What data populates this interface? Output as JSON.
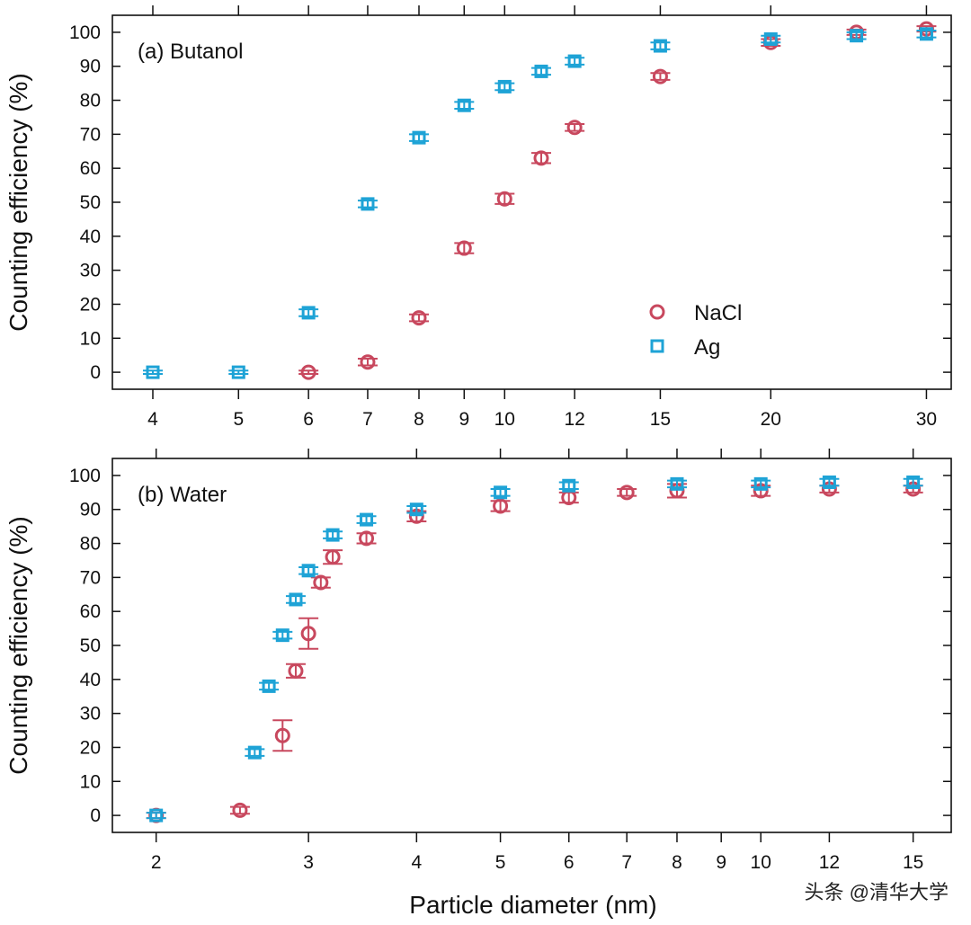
{
  "watermark": "头条 @清华大学",
  "shared_xlabel": "Particle diameter (nm)",
  "colors": {
    "NaCl": "#c8485e",
    "Ag": "#1ea3d6"
  },
  "chart_data": [
    {
      "type": "scatter",
      "panel_label": "(a) Butanol",
      "ylabel": "Counting efficiency (%)",
      "x_scale": "log",
      "xlim": [
        3.6,
        32
      ],
      "ylim": [
        -5,
        105
      ],
      "x_ticks": [
        4,
        5,
        6,
        7,
        8,
        9,
        10,
        12,
        15,
        20,
        30
      ],
      "y_ticks": [
        0,
        10,
        20,
        30,
        40,
        50,
        60,
        70,
        80,
        90,
        100
      ],
      "legend": {
        "position": "lower-right",
        "entries": [
          "NaCl",
          "Ag"
        ]
      },
      "series": [
        {
          "name": "NaCl",
          "marker": "circle",
          "points": [
            {
              "x": 6,
              "y": 0,
              "err": 0.5
            },
            {
              "x": 7,
              "y": 3,
              "err": 1
            },
            {
              "x": 8,
              "y": 16,
              "err": 1
            },
            {
              "x": 9,
              "y": 36.5,
              "err": 1.5
            },
            {
              "x": 10,
              "y": 51,
              "err": 1.5
            },
            {
              "x": 11,
              "y": 63,
              "err": 1.5
            },
            {
              "x": 12,
              "y": 72,
              "err": 1
            },
            {
              "x": 15,
              "y": 87,
              "err": 1
            },
            {
              "x": 20,
              "y": 97,
              "err": 1
            },
            {
              "x": 25,
              "y": 100,
              "err": 0.8
            },
            {
              "x": 30,
              "y": 101,
              "err": 0.8
            }
          ]
        },
        {
          "name": "Ag",
          "marker": "square",
          "points": [
            {
              "x": 4,
              "y": 0,
              "err": 0.5
            },
            {
              "x": 5,
              "y": 0,
              "err": 0.5
            },
            {
              "x": 6,
              "y": 17.5,
              "err": 1
            },
            {
              "x": 7,
              "y": 49.5,
              "err": 1
            },
            {
              "x": 8,
              "y": 69,
              "err": 1
            },
            {
              "x": 9,
              "y": 78.5,
              "err": 1
            },
            {
              "x": 10,
              "y": 84,
              "err": 1
            },
            {
              "x": 11,
              "y": 88.5,
              "err": 1
            },
            {
              "x": 12,
              "y": 91.5,
              "err": 1
            },
            {
              "x": 15,
              "y": 96,
              "err": 1
            },
            {
              "x": 20,
              "y": 98,
              "err": 1
            },
            {
              "x": 25,
              "y": 99,
              "err": 1
            },
            {
              "x": 30,
              "y": 99.5,
              "err": 1
            }
          ]
        }
      ]
    },
    {
      "type": "scatter",
      "panel_label": "(b) Water",
      "ylabel": "Counting efficiency (%)",
      "x_scale": "log",
      "xlim": [
        1.78,
        16.6
      ],
      "ylim": [
        -5,
        105
      ],
      "x_ticks": [
        2,
        3,
        4,
        5,
        6,
        7,
        8,
        9,
        10,
        12,
        15
      ],
      "y_ticks": [
        0,
        10,
        20,
        30,
        40,
        50,
        60,
        70,
        80,
        90,
        100
      ],
      "series": [
        {
          "name": "NaCl",
          "marker": "circle",
          "points": [
            {
              "x": 2,
              "y": 0,
              "err": 0.8
            },
            {
              "x": 2.5,
              "y": 1.5,
              "err": 1
            },
            {
              "x": 2.8,
              "y": 23.5,
              "err": 4.5
            },
            {
              "x": 2.9,
              "y": 42.5,
              "err": 2
            },
            {
              "x": 3.0,
              "y": 53.5,
              "err": 4.5
            },
            {
              "x": 3.1,
              "y": 68.5,
              "err": 1.5
            },
            {
              "x": 3.2,
              "y": 76,
              "err": 2
            },
            {
              "x": 3.5,
              "y": 81.5,
              "err": 1.5
            },
            {
              "x": 4,
              "y": 88,
              "err": 1.5
            },
            {
              "x": 5,
              "y": 91,
              "err": 1.5
            },
            {
              "x": 6,
              "y": 93.5,
              "err": 1.5
            },
            {
              "x": 7,
              "y": 95,
              "err": 1
            },
            {
              "x": 8,
              "y": 95.5,
              "err": 2
            },
            {
              "x": 10,
              "y": 95.5,
              "err": 1.5
            },
            {
              "x": 12,
              "y": 96,
              "err": 1
            },
            {
              "x": 15,
              "y": 96,
              "err": 1
            }
          ]
        },
        {
          "name": "Ag",
          "marker": "square",
          "points": [
            {
              "x": 2,
              "y": 0,
              "err": 0.8
            },
            {
              "x": 2.6,
              "y": 18.5,
              "err": 1
            },
            {
              "x": 2.7,
              "y": 38,
              "err": 1
            },
            {
              "x": 2.8,
              "y": 53,
              "err": 1
            },
            {
              "x": 2.9,
              "y": 63.5,
              "err": 1
            },
            {
              "x": 3.0,
              "y": 72,
              "err": 1
            },
            {
              "x": 3.2,
              "y": 82.5,
              "err": 1
            },
            {
              "x": 3.5,
              "y": 87,
              "err": 1
            },
            {
              "x": 4,
              "y": 90,
              "err": 1
            },
            {
              "x": 5,
              "y": 95,
              "err": 1
            },
            {
              "x": 6,
              "y": 97,
              "err": 1
            },
            {
              "x": 8,
              "y": 97.5,
              "err": 1
            },
            {
              "x": 10,
              "y": 97.5,
              "err": 1
            },
            {
              "x": 12,
              "y": 98,
              "err": 1
            },
            {
              "x": 15,
              "y": 98,
              "err": 1
            }
          ]
        }
      ]
    }
  ]
}
